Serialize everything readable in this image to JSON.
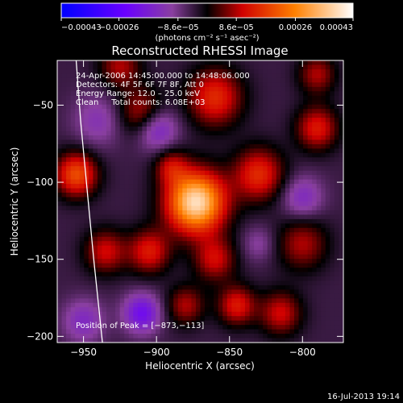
{
  "chart_data": {
    "type": "heatmap",
    "title": "Reconstructed RHESSI Image",
    "xlabel": "Heliocentric X (arcsec)",
    "ylabel": "Heliocentric Y (arcsec)",
    "xlim": [
      -968,
      -772
    ],
    "ylim": [
      -204,
      -21
    ],
    "x_ticks": [
      -950,
      -900,
      -850,
      -800
    ],
    "x_tick_labels": [
      "−950",
      "−900",
      "−850",
      "−800"
    ],
    "y_ticks": [
      -50,
      -100,
      -150,
      -200
    ],
    "y_tick_labels": [
      "−50",
      "−100",
      "−150",
      "−200"
    ],
    "colorbar": {
      "range": [
        -0.00043,
        0.00043
      ],
      "tick_values": [
        -0.00043,
        -0.00026,
        -8.6e-05,
        8.6e-05,
        0.00026,
        0.00043
      ],
      "tick_labels": [
        "−0.00043",
        "−0.00026",
        "−8.6e−05",
        "8.6e−05",
        "0.00026",
        "0.00043"
      ],
      "unit_label": "(photons cm⁻² s⁻¹ asec⁻²)"
    },
    "info_lines": [
      "24-Apr-2006 14:45:00.000 to 14:48:06.000",
      "Detectors: 4F 5F 6F 7F 8F, Att 0",
      "Energy Range: 12.0 – 25.0 keV",
      "Clean     Total counts: 6.08E+03"
    ],
    "peak_label": "Position of Peak = [−873,−113]",
    "peak": {
      "x": -873,
      "y": -113,
      "value": 0.00043
    },
    "limb_curve": [
      [
        -955,
        -21
      ],
      [
        -952,
        -60
      ],
      [
        -948,
        -100
      ],
      [
        -943,
        -150
      ],
      [
        -937,
        -204
      ]
    ],
    "sources": [
      {
        "x": -873,
        "y": -113,
        "amp": 1.0,
        "sigma": 14
      },
      {
        "x": -955,
        "y": -95,
        "amp": 0.55,
        "sigma": 10
      },
      {
        "x": -860,
        "y": -45,
        "amp": 0.45,
        "sigma": 13
      },
      {
        "x": -830,
        "y": -95,
        "amp": 0.45,
        "sigma": 12
      },
      {
        "x": -790,
        "y": -65,
        "amp": 0.4,
        "sigma": 10
      },
      {
        "x": -910,
        "y": -55,
        "amp": 0.35,
        "sigma": 11
      },
      {
        "x": -935,
        "y": -145,
        "amp": 0.35,
        "sigma": 10
      },
      {
        "x": -905,
        "y": -145,
        "amp": 0.4,
        "sigma": 10
      },
      {
        "x": -860,
        "y": -150,
        "amp": 0.35,
        "sigma": 10
      },
      {
        "x": -845,
        "y": -180,
        "amp": 0.4,
        "sigma": 9
      },
      {
        "x": -800,
        "y": -140,
        "amp": 0.3,
        "sigma": 12
      },
      {
        "x": -815,
        "y": -185,
        "amp": 0.35,
        "sigma": 10
      },
      {
        "x": -880,
        "y": -180,
        "amp": 0.3,
        "sigma": 9
      },
      {
        "x": -890,
        "y": -90,
        "amp": 0.3,
        "sigma": 8
      },
      {
        "x": -925,
        "y": -25,
        "amp": 0.3,
        "sigma": 10
      },
      {
        "x": -790,
        "y": -30,
        "amp": 0.3,
        "sigma": 9
      },
      {
        "x": -900,
        "y": -65,
        "amp": -0.35,
        "sigma": 10
      },
      {
        "x": -910,
        "y": -185,
        "amp": -0.4,
        "sigma": 9
      },
      {
        "x": -950,
        "y": -190,
        "amp": -0.25,
        "sigma": 10
      },
      {
        "x": -940,
        "y": -60,
        "amp": -0.2,
        "sigma": 12
      },
      {
        "x": -800,
        "y": -110,
        "amp": -0.25,
        "sigma": 10
      },
      {
        "x": -830,
        "y": -140,
        "amp": -0.15,
        "sigma": 8
      }
    ]
  },
  "timestamp": "16-Jul-2013 19:14"
}
